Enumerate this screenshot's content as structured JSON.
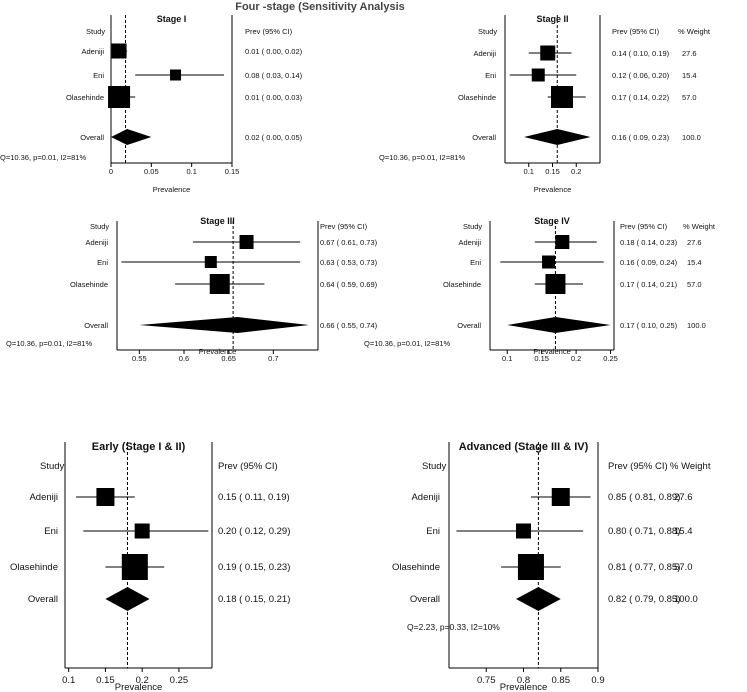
{
  "figure_title": "Four -stage (Sensitivity Analysis",
  "chart_data": [
    {
      "type": "forest",
      "title": "Stage I",
      "xlabel": "Prevalence",
      "col_study": "Study",
      "col_prev": "Prev (95% CI)",
      "col_weight": "",
      "xlim": [
        0,
        0.15
      ],
      "ticks": [
        0,
        0.05,
        0.1,
        0.15
      ],
      "tick_labels": [
        "0",
        "0.05",
        "0.1",
        "0.15"
      ],
      "ref_line": 0.018,
      "studies": [
        {
          "name": "Adeniji",
          "est": 0.01,
          "lo": 0.0,
          "hi": 0.02,
          "ci": "0.01 ( 0.00, 0.02)",
          "weight": ""
        },
        {
          "name": "Eni",
          "est": 0.08,
          "lo": 0.03,
          "hi": 0.14,
          "ci": "0.08 ( 0.03, 0.14)",
          "weight": ""
        },
        {
          "name": "Olasehinde",
          "est": 0.01,
          "lo": 0.0,
          "hi": 0.03,
          "ci": "0.01 ( 0.00, 0.03)",
          "weight": ""
        }
      ],
      "overall": {
        "name": "Overall",
        "est": 0.02,
        "lo": 0.0,
        "hi": 0.05,
        "ci": "0.02 ( 0.00, 0.05)",
        "weight": ""
      },
      "het": "Q=10.36, p=0.01, I2=81%"
    },
    {
      "type": "forest",
      "title": "Stage II",
      "xlabel": "Prevalence",
      "col_study": "Study",
      "col_prev": "Prev (95% CI)",
      "col_weight": "% Weight",
      "xlim": [
        0.05,
        0.25
      ],
      "ticks": [
        0.1,
        0.15,
        0.2
      ],
      "tick_labels": [
        "0.1",
        "0.15",
        "0.2"
      ],
      "ref_line": 0.16,
      "studies": [
        {
          "name": "Adeniji",
          "est": 0.14,
          "lo": 0.1,
          "hi": 0.19,
          "ci": "0.14 ( 0.10, 0.19)",
          "weight": "27.6"
        },
        {
          "name": "Eni",
          "est": 0.12,
          "lo": 0.06,
          "hi": 0.2,
          "ci": "0.12 ( 0.06, 0.20)",
          "weight": "15.4"
        },
        {
          "name": "Olasehinde",
          "est": 0.17,
          "lo": 0.14,
          "hi": 0.22,
          "ci": "0.17 ( 0.14, 0.22)",
          "weight": "57.0"
        }
      ],
      "overall": {
        "name": "Overall",
        "est": 0.16,
        "lo": 0.09,
        "hi": 0.23,
        "ci": "0.16 ( 0.09, 0.23)",
        "weight": "100.0"
      },
      "het": "Q=10.36, p=0.01, I2=81%"
    },
    {
      "type": "forest",
      "title": "Stage III",
      "xlabel": "Prevalence",
      "col_study": "Study",
      "col_prev": "Prev (95% CI)",
      "col_weight": "",
      "xlim": [
        0.525,
        0.75
      ],
      "ticks": [
        0.55,
        0.6,
        0.65,
        0.7
      ],
      "tick_labels": [
        "0.55",
        "0.6",
        "0.65",
        "0.7"
      ],
      "ref_line": 0.655,
      "studies": [
        {
          "name": "Adeniji",
          "est": 0.67,
          "lo": 0.61,
          "hi": 0.73,
          "ci": "0.67 ( 0.61, 0.73)",
          "weight": ""
        },
        {
          "name": "Eni",
          "est": 0.63,
          "lo": 0.53,
          "hi": 0.73,
          "ci": "0.63 ( 0.53, 0.73)",
          "weight": ""
        },
        {
          "name": "Olasehinde",
          "est": 0.64,
          "lo": 0.59,
          "hi": 0.69,
          "ci": "0.64 ( 0.59, 0.69)",
          "weight": ""
        }
      ],
      "overall": {
        "name": "Overall",
        "est": 0.66,
        "lo": 0.55,
        "hi": 0.74,
        "ci": "0.66 ( 0.55, 0.74)",
        "weight": ""
      },
      "het": "Q=10.36, p=0.01, I2=81%"
    },
    {
      "type": "forest",
      "title": "Stage IV",
      "xlabel": "Prevalence",
      "col_study": "Study",
      "col_prev": "Prev (95% CI)",
      "col_weight": "% Weight",
      "xlim": [
        0.075,
        0.255
      ],
      "ticks": [
        0.1,
        0.15,
        0.2,
        0.25
      ],
      "tick_labels": [
        "0.1",
        "0.15",
        "0.2",
        "0.25"
      ],
      "ref_line": 0.17,
      "studies": [
        {
          "name": "Adeniji",
          "est": 0.18,
          "lo": 0.14,
          "hi": 0.23,
          "ci": "0.18 ( 0.14, 0.23)",
          "weight": "27.6"
        },
        {
          "name": "Eni",
          "est": 0.16,
          "lo": 0.09,
          "hi": 0.24,
          "ci": "0.16 ( 0.09, 0.24)",
          "weight": "15.4"
        },
        {
          "name": "Olasehinde",
          "est": 0.17,
          "lo": 0.14,
          "hi": 0.21,
          "ci": "0.17 ( 0.14, 0.21)",
          "weight": "57.0"
        }
      ],
      "overall": {
        "name": "Overall",
        "est": 0.17,
        "lo": 0.1,
        "hi": 0.25,
        "ci": "0.17 ( 0.10, 0.25)",
        "weight": "100.0"
      },
      "het": "Q=10.36, p=0.01, I2=81%"
    },
    {
      "type": "forest",
      "title": "Early (Stage I & II)",
      "xlabel": "Prevalence",
      "col_study": "Study",
      "col_prev": "Prev (95% CI)",
      "col_weight": "",
      "xlim": [
        0.095,
        0.295
      ],
      "ticks": [
        0.1,
        0.15,
        0.2,
        0.25
      ],
      "tick_labels": [
        "0.1",
        "0.15",
        "0.2",
        "0.25"
      ],
      "ref_line": 0.18,
      "studies": [
        {
          "name": "Adeniji",
          "est": 0.15,
          "lo": 0.11,
          "hi": 0.19,
          "ci": "0.15 ( 0.11, 0.19)",
          "weight": ""
        },
        {
          "name": "Eni",
          "est": 0.2,
          "lo": 0.12,
          "hi": 0.29,
          "ci": "0.20 ( 0.12, 0.29)",
          "weight": ""
        },
        {
          "name": "Olasehinde",
          "est": 0.19,
          "lo": 0.15,
          "hi": 0.23,
          "ci": "0.19 ( 0.15, 0.23)",
          "weight": ""
        }
      ],
      "overall": {
        "name": "Overall",
        "est": 0.18,
        "lo": 0.15,
        "hi": 0.21,
        "ci": "0.18 ( 0.15, 0.21)",
        "weight": ""
      },
      "het": ""
    },
    {
      "type": "forest",
      "title": "Advanced (Stage III & IV)",
      "xlabel": "Prevalence",
      "col_study": "Study",
      "col_prev": "Prev (95% CI)",
      "col_weight": "% Weight",
      "xlim": [
        0.7,
        0.9
      ],
      "ticks": [
        0.75,
        0.8,
        0.85,
        0.9
      ],
      "tick_labels": [
        "0.75",
        "0.8",
        "0.85",
        "0.9"
      ],
      "ref_line": 0.82,
      "studies": [
        {
          "name": "Adeniji",
          "est": 0.85,
          "lo": 0.81,
          "hi": 0.89,
          "ci": "0.85 ( 0.81, 0.89)",
          "weight": "27.6"
        },
        {
          "name": "Eni",
          "est": 0.8,
          "lo": 0.71,
          "hi": 0.88,
          "ci": "0.80 ( 0.71, 0.88)",
          "weight": "15.4"
        },
        {
          "name": "Olasehinde",
          "est": 0.81,
          "lo": 0.77,
          "hi": 0.85,
          "ci": "0.81 ( 0.77, 0.85)",
          "weight": "57.0"
        }
      ],
      "overall": {
        "name": "Overall",
        "est": 0.82,
        "lo": 0.79,
        "hi": 0.85,
        "ci": "0.82 ( 0.79, 0.85)",
        "weight": "100.0"
      },
      "het": "Q=2.23, p=0.33, I2=10%"
    }
  ]
}
